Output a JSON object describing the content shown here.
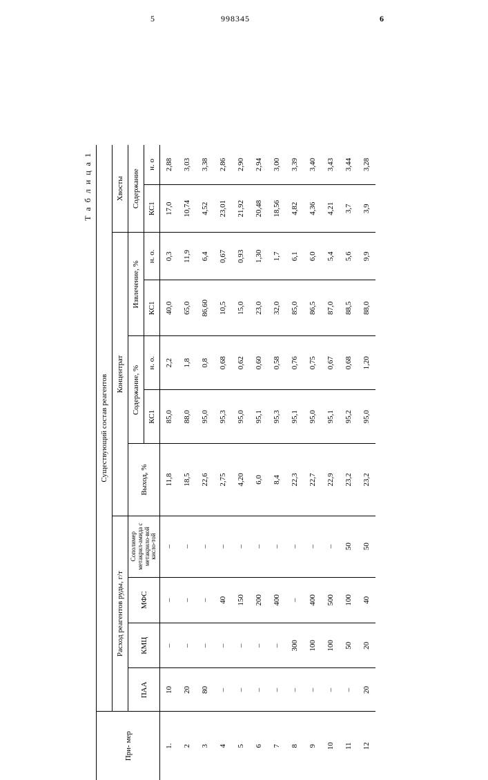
{
  "document_number": "998345",
  "margin_left_number": "5",
  "margin_right_number": "6",
  "table_caption": "Т а б л и ц а  1",
  "headers": {
    "primer": "При-\nмер",
    "sost": "Существующий состав реагентов",
    "rashod": "Расход реагентов руды, г/т",
    "paa": "ПАА",
    "kmc": "КМЦ",
    "mfs": "МФС",
    "copolymer": "Сополимер метакрил-амида с метакрило-вой кисло-той",
    "konc": "Концентрат",
    "vyhod": "Выход, %",
    "soderz": "Содержание, %",
    "izvlech": "Извлечение, %",
    "hvosty": "Хвосты",
    "soderz2": "Содержание",
    "kcl": "КС1",
    "no": "н. о.",
    "no2": "н. о"
  },
  "rows": [
    {
      "n": "1.",
      "paa": "10",
      "kmc": "–",
      "mfs": "–",
      "cop": "–",
      "vy": "11,8",
      "skc": "85,0",
      "sno": "2,2",
      "izk": "40,0",
      "izn": "0,3",
      "hkc": "17,0",
      "hno": "2,88"
    },
    {
      "n": "2",
      "paa": "20",
      "kmc": "–",
      "mfs": "–",
      "cop": "–",
      "vy": "18,5",
      "skc": "88,0",
      "sno": "1,8",
      "izk": "65,0",
      "izn": "11,9",
      "hkc": "10,74",
      "hno": "3,03"
    },
    {
      "n": "3",
      "paa": "80",
      "kmc": "–",
      "mfs": "–",
      "cop": "–",
      "vy": "22,6",
      "skc": "95,0",
      "sno": "0,8",
      "izk": "86,60",
      "izn": "6,4",
      "hkc": "4,52",
      "hno": "3,38"
    },
    {
      "n": "4",
      "paa": "–",
      "kmc": "–",
      "mfs": "40",
      "cop": "–",
      "vy": "2,75",
      "skc": "95,3",
      "sno": "0,68",
      "izk": "10,5",
      "izn": "0,67",
      "hkc": "23,01",
      "hno": "2,86"
    },
    {
      "n": "5",
      "paa": "–",
      "kmc": "–",
      "mfs": "150",
      "cop": "–",
      "vy": "4,20",
      "skc": "95,0",
      "sno": "0,62",
      "izk": "15,0",
      "izn": "0,93",
      "hkc": "21,92",
      "hno": "2,90"
    },
    {
      "n": "6",
      "paa": "–",
      "kmc": "–",
      "mfs": "200",
      "cop": "–",
      "vy": "6,0",
      "skc": "95,1",
      "sno": "0,60",
      "izk": "23,0",
      "izn": "1,30",
      "hkc": "20,48",
      "hno": "2,94"
    },
    {
      "n": "7",
      "paa": "–",
      "kmc": "–",
      "mfs": "400",
      "cop": "–",
      "vy": "8,4",
      "skc": "95,3",
      "sno": "0,58",
      "izk": "32,0",
      "izn": "1,7",
      "hkc": "18,56",
      "hno": "3,00"
    },
    {
      "n": "8",
      "paa": "–",
      "kmc": "300",
      "mfs": "–",
      "cop": "–",
      "vy": "22,3",
      "skc": "95,1",
      "sno": "0,76",
      "izk": "85,0",
      "izn": "6,1",
      "hkc": "4,82",
      "hno": "3,39"
    },
    {
      "n": "9",
      "paa": "–",
      "kmc": "100",
      "mfs": "400",
      "cop": "–",
      "vy": "22,7",
      "skc": "95,0",
      "sno": "0,75",
      "izk": "86,5",
      "izn": "6,0",
      "hkc": "4,36",
      "hno": "3,40"
    },
    {
      "n": "10",
      "paa": "–",
      "kmc": "100",
      "mfs": "500",
      "cop": "–",
      "vy": "22,9",
      "skc": "95,1",
      "sno": "0,67",
      "izk": "87,0",
      "izn": "5,4",
      "hkc": "4,21",
      "hno": "3,43"
    },
    {
      "n": "11",
      "paa": "–",
      "kmc": "50",
      "mfs": "100",
      "cop": "50",
      "vy": "23,2",
      "skc": "95,2",
      "sno": "0,68",
      "izk": "88,5",
      "izn": "5,6",
      "hkc": "3,7",
      "hno": "3,44"
    },
    {
      "n": "12",
      "paa": "20",
      "kmc": "20",
      "mfs": "40",
      "cop": "50",
      "vy": "23,2",
      "skc": "95,0",
      "sno": "1,20",
      "izk": "88,0",
      "izn": "9,9",
      "hkc": "3,9",
      "hno": "3,28"
    }
  ]
}
